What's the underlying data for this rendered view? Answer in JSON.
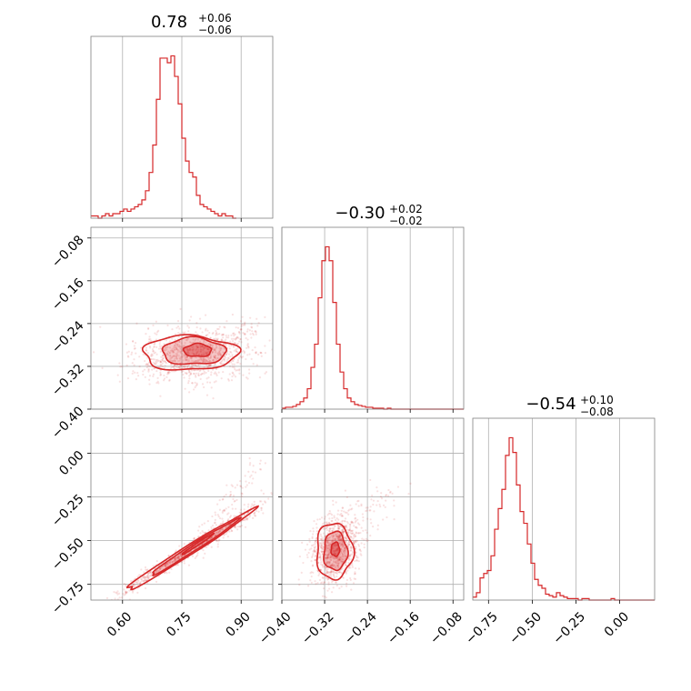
{
  "chart_data": {
    "type": "corner",
    "color": "#d62728",
    "params": [
      {
        "title_main": "0.78",
        "title_plus": "+0.06",
        "title_minus": "−0.06",
        "range": [
          0.52,
          0.98
        ],
        "ticks": [
          0.6,
          0.75,
          0.9
        ],
        "tick_labels": [
          "0.60",
          "0.75",
          "0.90"
        ],
        "hist": {
          "edges_start": 0.52,
          "bin_width": 0.0092,
          "counts": [
            1,
            1,
            0,
            1,
            2,
            1,
            2,
            2,
            3,
            4,
            3,
            4,
            5,
            6,
            8,
            12,
            20,
            32,
            52,
            70,
            70,
            68,
            71,
            62,
            50,
            35,
            25,
            20,
            18,
            10,
            6,
            5,
            4,
            3,
            2,
            1,
            2,
            1,
            1,
            0
          ]
        }
      },
      {
        "title_main": "−0.30",
        "title_plus": "+0.02",
        "title_minus": "−0.02",
        "range": [
          -0.4,
          -0.06
        ],
        "ticks": [
          -0.4,
          -0.32,
          -0.24,
          -0.16,
          -0.08
        ],
        "tick_labels": [
          "−0.40",
          "−0.32",
          "−0.24",
          "−0.16",
          "−0.08"
        ],
        "hist": {
          "edges_start": -0.4,
          "bin_width": 0.0068,
          "counts": [
            1,
            2,
            2,
            3,
            5,
            8,
            12,
            22,
            45,
            70,
            120,
            160,
            175,
            160,
            115,
            70,
            40,
            22,
            12,
            8,
            5,
            4,
            3,
            2,
            2,
            1,
            1,
            1,
            0,
            1,
            0,
            0,
            0,
            0,
            0,
            0,
            0,
            0,
            0,
            0,
            0,
            0,
            0,
            0,
            0,
            0,
            0,
            0,
            0,
            0
          ]
        }
      },
      {
        "title_main": "−0.54",
        "title_plus": "+0.10",
        "title_minus": "−0.08",
        "range": [
          -0.84,
          0.2
        ],
        "ticks": [
          -0.75,
          -0.5,
          -0.25,
          0.0
        ],
        "tick_labels": [
          "−0.75",
          "−0.50",
          "−0.25",
          "0.00"
        ],
        "hist": {
          "edges_start": -0.84,
          "bin_width": 0.0208,
          "counts": [
            2,
            5,
            15,
            18,
            20,
            30,
            48,
            62,
            75,
            98,
            110,
            100,
            78,
            60,
            52,
            38,
            25,
            14,
            10,
            8,
            4,
            3,
            2,
            5,
            3,
            2,
            1,
            1,
            1,
            0,
            1,
            1,
            0,
            0,
            0,
            0,
            0,
            0,
            1,
            0,
            0,
            0,
            0,
            0,
            0,
            0,
            0,
            0,
            0,
            0
          ]
        }
      }
    ],
    "pairs": [
      {
        "x_param": 0,
        "y_param": 1,
        "scatter": {
          "center": [
            0.78,
            -0.3
          ],
          "spread": [
            0.075,
            0.025
          ],
          "rho": 0.15,
          "n": 1100,
          "tail": [
            0.94,
            -0.24,
            0.04,
            0.05
          ]
        },
        "levels": [
          {
            "center": [
              0.79,
              -0.29
            ],
            "radius": [
              0.035,
              0.012
            ],
            "filled": true,
            "opacity": 0.45
          },
          {
            "center": [
              0.78,
              -0.292
            ],
            "radius": [
              0.08,
              0.025
            ],
            "filled": true,
            "opacity": 0.25
          },
          {
            "center": [
              0.77,
              -0.295
            ],
            "radius": [
              0.12,
              0.032
            ],
            "filled": false,
            "opacity": 0
          }
        ]
      },
      {
        "x_param": 0,
        "y_param": 2,
        "scatter": {
          "center": [
            0.78,
            -0.54
          ],
          "spread": [
            0.09,
            0.13
          ],
          "rho": 0.985,
          "n": 1100,
          "tail": [
            0.95,
            -0.05,
            0.03,
            0.2
          ]
        },
        "levels": [
          {
            "center": [
              0.79,
              -0.52
            ],
            "radius": [
              0.04,
              0.06
            ],
            "filled": true,
            "opacity": 0.45,
            "rho": 0.99
          },
          {
            "center": [
              0.78,
              -0.54
            ],
            "radius": [
              0.11,
              0.16
            ],
            "filled": true,
            "opacity": 0.25,
            "rho": 0.99
          },
          {
            "center": [
              0.765,
              -0.56
            ],
            "radius": [
              0.16,
              0.23
            ],
            "filled": false,
            "opacity": 0,
            "rho": 0.99
          }
        ]
      },
      {
        "x_param": 1,
        "y_param": 2,
        "scatter": {
          "center": [
            -0.3,
            -0.55
          ],
          "spread": [
            0.022,
            0.1
          ],
          "rho": 0.2,
          "n": 1100,
          "tail": [
            -0.2,
            -0.2,
            0.05,
            0.12
          ]
        },
        "levels": [
          {
            "center": [
              -0.3,
              -0.55
            ],
            "radius": [
              0.008,
              0.04
            ],
            "filled": true,
            "opacity": 0.5
          },
          {
            "center": [
              -0.3,
              -0.56
            ],
            "radius": [
              0.022,
              0.11
            ],
            "filled": true,
            "opacity": 0.28
          },
          {
            "center": [
              -0.302,
              -0.56
            ],
            "radius": [
              0.034,
              0.16
            ],
            "filled": false,
            "opacity": 0
          }
        ]
      }
    ]
  }
}
